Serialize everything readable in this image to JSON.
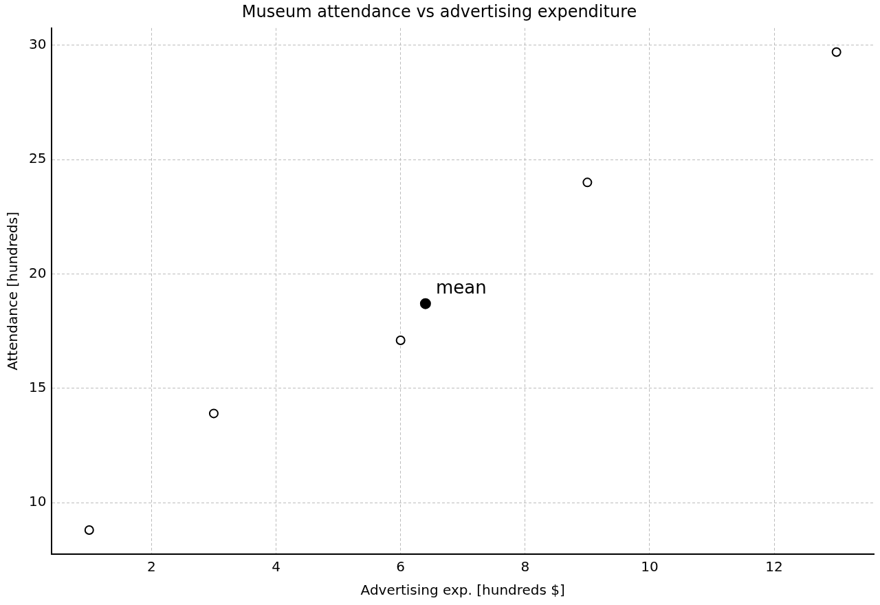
{
  "chart_data": {
    "type": "scatter",
    "title": "Museum attendance vs advertising expenditure",
    "xlabel": "Advertising exp. [hundreds $]",
    "ylabel": "Attendance [hundreds]",
    "series": [
      {
        "color": "#000000",
        "x": [
          1,
          3,
          6,
          9,
          13
        ],
        "values": [
          8.8,
          13.9,
          17.1,
          24.0,
          29.7
        ]
      },
      {
        "name": "mean",
        "color": "#000000",
        "x": [
          6.4
        ],
        "values": [
          18.7
        ]
      }
    ],
    "xlim": [
      0.4,
      13.6
    ],
    "xticks": [
      2,
      4,
      6,
      8,
      10,
      12
    ],
    "ylim": [
      7.75,
      30.75
    ],
    "yticks": [
      10,
      15,
      20,
      25,
      30
    ],
    "grid": true,
    "legend": false,
    "marker": "circle"
  }
}
